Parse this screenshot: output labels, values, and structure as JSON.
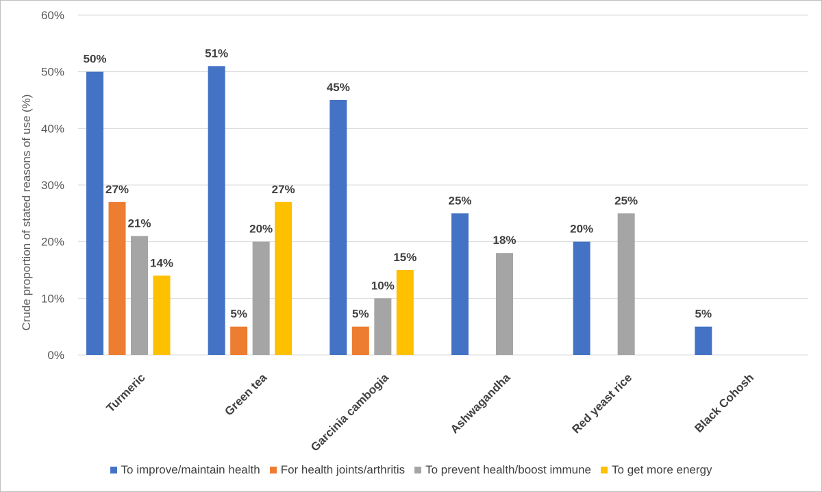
{
  "chart_data": {
    "type": "bar",
    "title": "",
    "xlabel": "",
    "ylabel": "Crude proportion of stated reasons of use (%)",
    "ylim": [
      0,
      60
    ],
    "ytick_values": [
      0,
      10,
      20,
      30,
      40,
      50,
      60
    ],
    "ytick_labels": [
      "0%",
      "10%",
      "20%",
      "30%",
      "40%",
      "50%",
      "60%"
    ],
    "grid": true,
    "legend_position": "bottom",
    "categories": [
      "Turmeric",
      "Green tea",
      "Garcinia cambogia",
      "Ashwagandha",
      "Red yeast rice",
      "Black Cohosh"
    ],
    "series": [
      {
        "name": "To improve/maintain health",
        "color": "#4472c4",
        "values": [
          50,
          51,
          45,
          25,
          20,
          5
        ]
      },
      {
        "name": "For health joints/arthritis",
        "color": "#ed7d31",
        "values": [
          27,
          5,
          5,
          null,
          null,
          null
        ]
      },
      {
        "name": "To prevent health/boost immune",
        "color": "#a5a5a5",
        "values": [
          21,
          20,
          10,
          18,
          25,
          null
        ]
      },
      {
        "name": "To get more energy",
        "color": "#ffc000",
        "values": [
          14,
          27,
          15,
          null,
          null,
          null
        ]
      }
    ]
  }
}
